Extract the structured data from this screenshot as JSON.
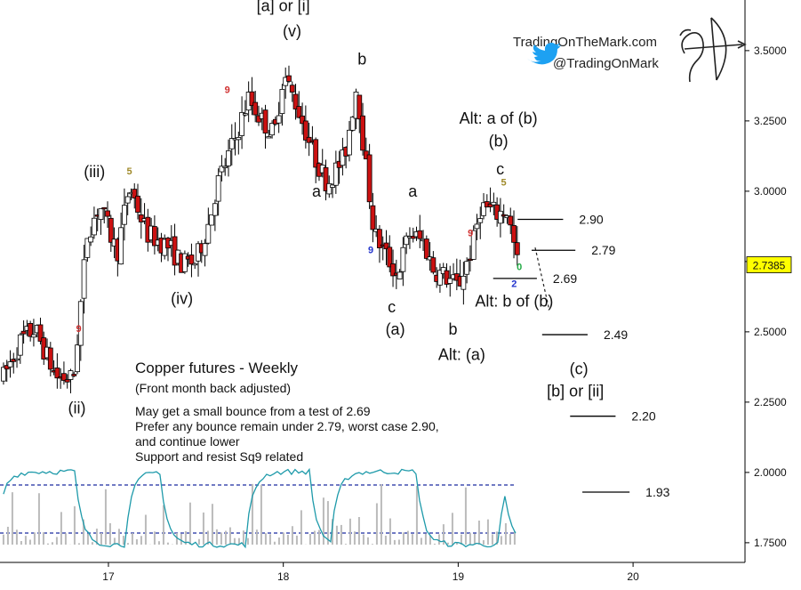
{
  "brand": {
    "site": "TradingOnTheMark.com",
    "twitter": "@TradingOnMark",
    "logo_icon": "archer-bow-icon",
    "twitter_icon": "twitter-bird-icon"
  },
  "chart_data": {
    "type": "candlestick",
    "title": "Copper futures - Weekly",
    "subtitle": "(Front month back adjusted)",
    "notes": [
      "May get a small bounce from a test of 2.69",
      "Prefer any bounce remain under 2.79, worst case 2.90,",
      "and continue lower",
      "Support and resist Sq9 related"
    ],
    "ylim": [
      1.68,
      3.68
    ],
    "xlim": [
      16.38,
      20.64
    ],
    "yticks": [
      "3.5000",
      "3.2500",
      "3.0000",
      "2.7500",
      "2.5000",
      "2.2500",
      "2.0000",
      "1.7500"
    ],
    "xticks": [
      "17",
      "18",
      "19",
      "20"
    ],
    "last_price": "2.7385",
    "colors": {
      "up": "#ffffff",
      "down": "#cc1111",
      "outline": "#000000",
      "indicator": "#1e9aaa",
      "dotted": "#1a2aa0",
      "last_price_bg": "#ffff00"
    },
    "key_pivots": [
      {
        "x": 16.4,
        "y": 2.34
      },
      {
        "x": 16.5,
        "y": 2.47
      },
      {
        "x": 16.58,
        "y": 2.51
      },
      {
        "x": 16.7,
        "y": 2.34
      },
      {
        "x": 16.8,
        "y": 2.33
      },
      {
        "x": 16.88,
        "y": 2.85
      },
      {
        "x": 16.95,
        "y": 2.95
      },
      {
        "x": 17.05,
        "y": 2.78
      },
      {
        "x": 17.12,
        "y": 3.02
      },
      {
        "x": 17.22,
        "y": 2.85
      },
      {
        "x": 17.35,
        "y": 2.8
      },
      {
        "x": 17.42,
        "y": 2.74
      },
      {
        "x": 17.5,
        "y": 2.75
      },
      {
        "x": 17.58,
        "y": 2.9
      },
      {
        "x": 17.62,
        "y": 3.02
      },
      {
        "x": 17.72,
        "y": 3.18
      },
      {
        "x": 17.8,
        "y": 3.33
      },
      {
        "x": 17.88,
        "y": 3.25
      },
      {
        "x": 17.95,
        "y": 3.2
      },
      {
        "x": 18.0,
        "y": 3.42
      },
      {
        "x": 18.08,
        "y": 3.3
      },
      {
        "x": 18.18,
        "y": 3.12
      },
      {
        "x": 18.25,
        "y": 3.03
      },
      {
        "x": 18.35,
        "y": 3.12
      },
      {
        "x": 18.42,
        "y": 3.38
      },
      {
        "x": 18.46,
        "y": 3.15
      },
      {
        "x": 18.52,
        "y": 2.85
      },
      {
        "x": 18.58,
        "y": 2.78
      },
      {
        "x": 18.65,
        "y": 2.7
      },
      {
        "x": 18.72,
        "y": 2.85
      },
      {
        "x": 18.8,
        "y": 2.82
      },
      {
        "x": 18.86,
        "y": 2.72
      },
      {
        "x": 18.92,
        "y": 2.7
      },
      {
        "x": 19.0,
        "y": 2.66
      },
      {
        "x": 19.08,
        "y": 2.8
      },
      {
        "x": 19.13,
        "y": 2.95
      },
      {
        "x": 19.22,
        "y": 2.92
      },
      {
        "x": 19.28,
        "y": 2.93
      },
      {
        "x": 19.34,
        "y": 2.74
      }
    ],
    "projection": [
      {
        "x": 19.44,
        "y": 2.8
      },
      {
        "x": 19.52,
        "y": 2.58
      }
    ],
    "levels": [
      {
        "label": "2.90",
        "y": 2.9,
        "x0": 19.34,
        "x1": 19.6
      },
      {
        "label": "2.79",
        "y": 2.79,
        "x0": 19.42,
        "x1": 19.67
      },
      {
        "label": "2.69",
        "y": 2.69,
        "x0": 19.2,
        "x1": 19.45
      },
      {
        "label": "2.49",
        "y": 2.49,
        "x0": 19.48,
        "x1": 19.74
      },
      {
        "label": "2.20",
        "y": 2.2,
        "x0": 19.64,
        "x1": 19.9
      },
      {
        "label": "1.93",
        "y": 1.93,
        "x0": 19.71,
        "x1": 19.98
      }
    ],
    "wave_labels": [
      {
        "text": "[a] or [i]",
        "x": 18.0,
        "y": 3.64
      },
      {
        "text": "(v)",
        "x": 18.05,
        "y": 3.55
      },
      {
        "text": "b",
        "x": 18.45,
        "y": 3.45
      },
      {
        "text": "a",
        "x": 18.19,
        "y": 2.98
      },
      {
        "text": "(iii)",
        "x": 16.92,
        "y": 3.05
      },
      {
        "text": "(iv)",
        "x": 17.42,
        "y": 2.6
      },
      {
        "text": "(ii)",
        "x": 16.82,
        "y": 2.21
      },
      {
        "text": "a",
        "x": 18.74,
        "y": 2.98
      },
      {
        "text": "c",
        "x": 18.62,
        "y": 2.57
      },
      {
        "text": "(a)",
        "x": 18.64,
        "y": 2.49
      },
      {
        "text": "b",
        "x": 18.97,
        "y": 2.49
      },
      {
        "text": "Alt: (a)",
        "x": 19.02,
        "y": 2.4
      },
      {
        "text": "Alt: a of (b)",
        "x": 19.23,
        "y": 3.24
      },
      {
        "text": "(b)",
        "x": 19.23,
        "y": 3.16
      },
      {
        "text": "c",
        "x": 19.24,
        "y": 3.06
      },
      {
        "text": "Alt: b of (b)",
        "x": 19.32,
        "y": 2.59
      },
      {
        "text": "(c)",
        "x": 19.69,
        "y": 2.35
      },
      {
        "text": "[b] or [ii]",
        "x": 19.67,
        "y": 2.27
      }
    ],
    "sequential_marks": [
      {
        "text": "5",
        "x": 17.12,
        "y": 3.06,
        "color": "#a08a2a"
      },
      {
        "text": "9",
        "x": 17.68,
        "y": 3.35,
        "color": "#d03030"
      },
      {
        "text": "9",
        "x": 16.83,
        "y": 2.5,
        "color": "#d03030"
      },
      {
        "text": "9",
        "x": 18.5,
        "y": 2.78,
        "color": "#2233cc"
      },
      {
        "text": "9",
        "x": 19.07,
        "y": 2.84,
        "color": "#d03030"
      },
      {
        "text": "5",
        "x": 19.26,
        "y": 3.02,
        "color": "#a08a2a"
      },
      {
        "text": "2",
        "x": 19.32,
        "y": 2.66,
        "color": "#2233cc"
      },
      {
        "text": "0",
        "x": 19.35,
        "y": 2.72,
        "color": "#22aa44"
      }
    ]
  }
}
